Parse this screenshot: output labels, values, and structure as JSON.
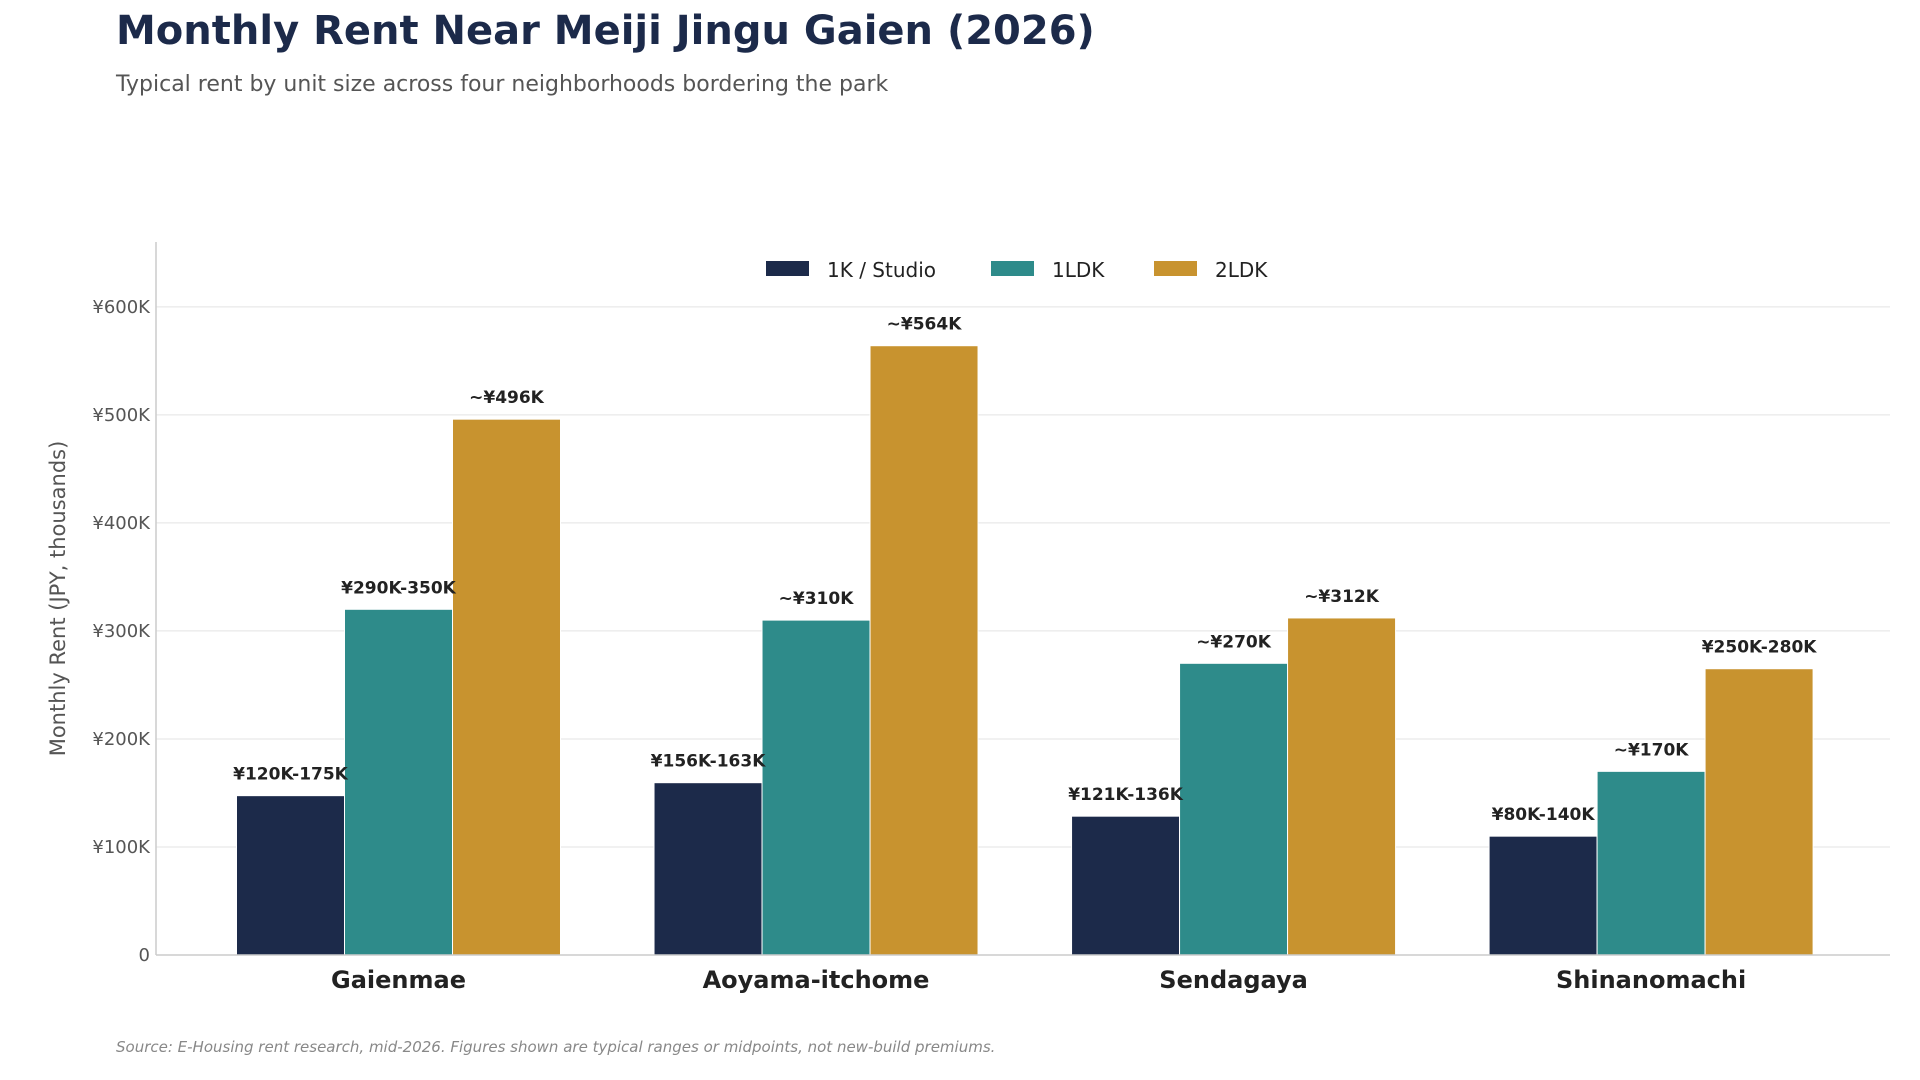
{
  "title": "Monthly Rent Near Meiji Jingu Gaien (2026)",
  "subtitle": "Typical rent by unit size across four neighborhoods bordering the park",
  "source": "Source: E-Housing rent research, mid-2026. Figures shown are typical ranges or midpoints, not new-build premiums.",
  "colors": {
    "1K / Studio": "#1c2a4a",
    "1LDK": "#2e8b8a",
    "2LDK": "#c8932f"
  },
  "chart_data": {
    "type": "bar",
    "ylabel": "Monthly Rent (JPY, thousands)",
    "ylim": [
      0,
      660
    ],
    "yticks": [
      0,
      100,
      200,
      300,
      400,
      500,
      600
    ],
    "ytick_labels": [
      "0",
      "¥100K",
      "¥200K",
      "¥300K",
      "¥400K",
      "¥500K",
      "¥600K"
    ],
    "grid": "horizontal",
    "legend": "top-center",
    "categories": [
      "Gaienmae",
      "Aoyama-itchome",
      "Sendagaya",
      "Shinanomachi"
    ],
    "series": [
      {
        "name": "1K / Studio",
        "values": [
          147.5,
          159.5,
          128.5,
          110
        ],
        "labels": [
          "¥120K-175K",
          "¥156K-163K",
          "¥121K-136K",
          "¥80K-140K"
        ]
      },
      {
        "name": "1LDK",
        "values": [
          320,
          310,
          270,
          170
        ],
        "labels": [
          "¥290K-350K",
          "~¥310K",
          "~¥270K",
          "~¥170K"
        ]
      },
      {
        "name": "2LDK",
        "values": [
          496,
          564,
          312,
          265
        ],
        "labels": [
          "~¥496K",
          "~¥564K",
          "~¥312K",
          "¥250K-280K"
        ]
      }
    ]
  }
}
